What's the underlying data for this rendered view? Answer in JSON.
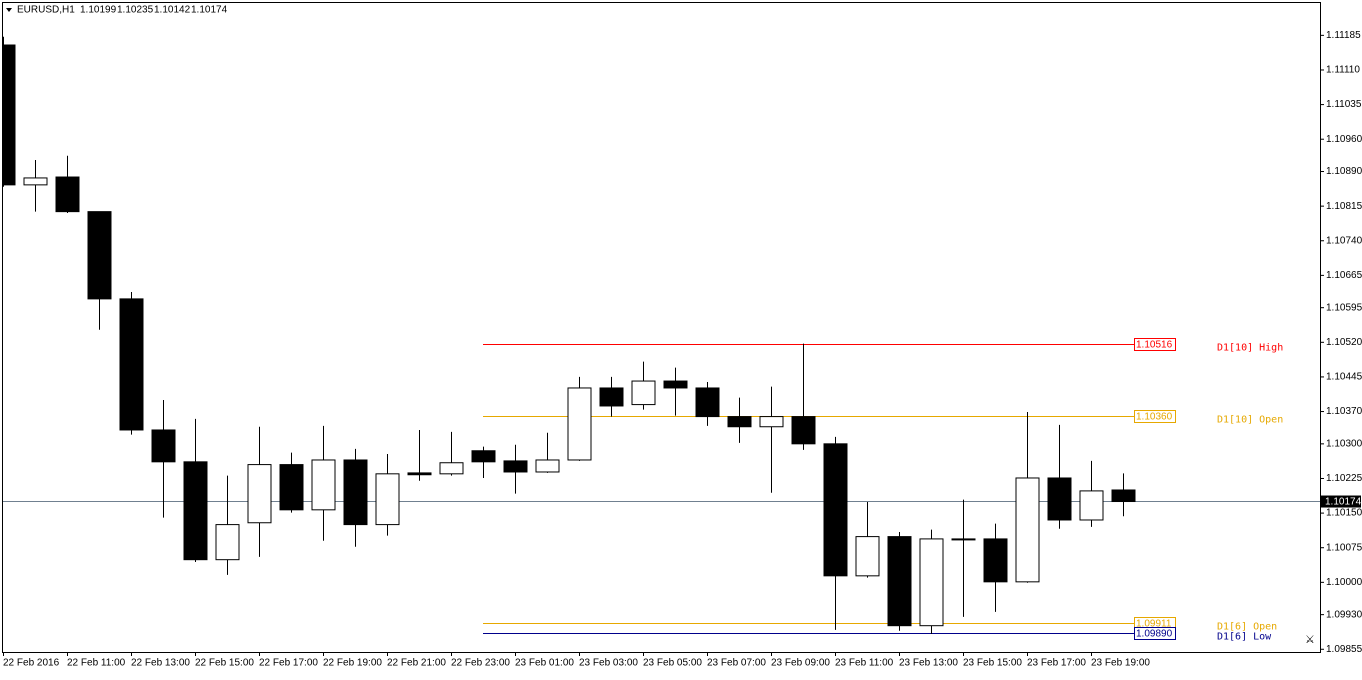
{
  "chart_data": {
    "type": "candlestick",
    "title": "EURUSD,H1",
    "quote": [
      1.10199,
      1.10235,
      1.10142,
      1.10174
    ],
    "categories": [
      "22 Feb 2016",
      null,
      "22 Feb 11:00",
      null,
      "22 Feb 13:00",
      null,
      "22 Feb 15:00",
      null,
      "22 Feb 17:00",
      null,
      "22 Feb 19:00",
      null,
      "22 Feb 21:00",
      null,
      "22 Feb 23:00",
      null,
      "23 Feb 01:00",
      null,
      "23 Feb 03:00",
      null,
      "23 Feb 05:00",
      null,
      "23 Feb 07:00",
      null,
      "23 Feb 09:00",
      null,
      "23 Feb 11:00",
      null,
      "23 Feb 13:00",
      null,
      "23 Feb 15:00",
      null,
      "23 Feb 17:00",
      null,
      "23 Feb 19:00",
      null
    ],
    "open": [
      1.11163,
      1.1086,
      1.10877,
      1.10802,
      1.10613,
      1.10329,
      1.1026,
      1.10048,
      1.10128,
      1.10254,
      1.10156,
      1.10264,
      1.10124,
      1.10236,
      1.10234,
      1.10284,
      1.10262,
      1.10238,
      1.10264,
      1.1042,
      1.10384,
      1.10435,
      1.1042,
      1.10358,
      1.10336,
      1.10358,
      1.10299,
      1.10013,
      1.10098,
      1.09905,
      1.10091,
      1.10093,
      1.1,
      1.10225,
      1.10134,
      1.10199
    ],
    "high": [
      1.11181,
      1.10914,
      1.10923,
      1.10802,
      1.10628,
      1.10394,
      1.10353,
      1.1023,
      1.10336,
      1.1028,
      1.10338,
      1.10288,
      1.10277,
      1.10329,
      1.10325,
      1.10293,
      1.10297,
      1.10323,
      1.10444,
      1.10444,
      1.10477,
      1.10464,
      1.10433,
      1.10399,
      1.10423,
      1.10516,
      1.10314,
      1.10173,
      1.10108,
      1.10113,
      1.10178,
      1.10126,
      1.10368,
      1.1034,
      1.10262,
      1.10235
    ],
    "low": [
      1.10856,
      1.10802,
      1.10799,
      1.10546,
      1.10319,
      1.10139,
      1.10043,
      1.10015,
      1.10054,
      1.1015,
      1.10089,
      1.10076,
      1.101,
      1.10219,
      1.1023,
      1.10225,
      1.10191,
      1.10236,
      1.10262,
      1.10358,
      1.10373,
      1.1036,
      1.10338,
      1.10301,
      1.10193,
      1.10286,
      1.09896,
      1.10009,
      1.09894,
      1.09887,
      1.09924,
      1.09935,
      1.09998,
      1.10115,
      1.10119,
      1.10142
    ],
    "close": [
      1.1086,
      1.10875,
      1.10802,
      1.10613,
      1.10329,
      1.1026,
      1.10048,
      1.10124,
      1.10254,
      1.10156,
      1.10264,
      1.10124,
      1.10234,
      1.10232,
      1.10258,
      1.1026,
      1.10238,
      1.10264,
      1.1042,
      1.10381,
      1.10435,
      1.1042,
      1.10358,
      1.10336,
      1.10358,
      1.10299,
      1.10013,
      1.10098,
      1.09905,
      1.10093,
      1.10093,
      1.1,
      1.10225,
      1.10134,
      1.10197,
      1.10174
    ],
    "ylim": [
      1.09848,
      1.11254
    ],
    "yticks": [
      1.11185,
      {
        "value": 1.1111,
        "label": "1.11110"
      },
      1.11035,
      {
        "value": 1.1096,
        "label": "1.10960"
      },
      {
        "value": 1.1089,
        "label": "1.10890"
      },
      1.10815,
      {
        "value": 1.1074,
        "label": "1.10740"
      },
      1.10665,
      1.10595,
      {
        "value": 1.1052,
        "label": "1.10520"
      },
      1.10445,
      {
        "value": 1.1037,
        "label": "1.10370"
      },
      {
        "value": 1.103,
        "label": "1.10300"
      },
      1.10225,
      {
        "value": 1.1015,
        "label": "1.10150"
      },
      1.10075,
      {
        "value": 1.1,
        "label": "1.10000"
      },
      {
        "value": 1.0993,
        "label": "1.09930"
      },
      1.09855
    ],
    "current_price": 1.10174,
    "levels": [
      {
        "name": "D1[10] High",
        "value": 1.10516,
        "color": "#ff0000"
      },
      {
        "name": "D1[10] Open",
        "value": 1.1036,
        "value_label": "1.10360",
        "color": "#e6a800"
      },
      {
        "name": "D1[6] Open",
        "value": 1.09911,
        "color": "#e6a800"
      },
      {
        "name": "D1[6] Low",
        "value": 1.0989,
        "value_label": "1.09890",
        "color": "#00008b"
      }
    ]
  }
}
